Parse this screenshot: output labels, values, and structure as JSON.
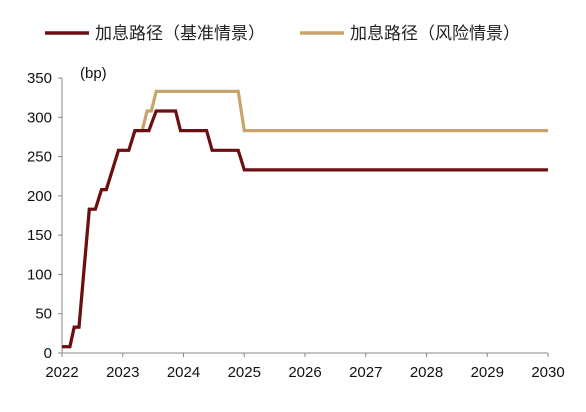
{
  "chart_data": {
    "type": "line",
    "ylabel": "(bp)",
    "ylim": [
      0,
      350
    ],
    "xlim": [
      2022,
      2030
    ],
    "y_ticks": [
      "0",
      "50",
      "100",
      "150",
      "200",
      "250",
      "300",
      "350"
    ],
    "x_ticks": [
      "2022",
      "2023",
      "2024",
      "2025",
      "2026",
      "2027",
      "2028",
      "2029",
      "2030"
    ],
    "grid": false,
    "legend_position": "top",
    "series": [
      {
        "name": "加息路径（基准情景）",
        "color": "#6b0f12",
        "points": [
          [
            2022.0,
            8
          ],
          [
            2022.13,
            8
          ],
          [
            2022.2,
            33
          ],
          [
            2022.28,
            33
          ],
          [
            2022.45,
            183
          ],
          [
            2022.55,
            183
          ],
          [
            2022.65,
            208
          ],
          [
            2022.73,
            208
          ],
          [
            2022.93,
            258
          ],
          [
            2023.1,
            258
          ],
          [
            2023.2,
            283
          ],
          [
            2023.43,
            283
          ],
          [
            2023.55,
            308
          ],
          [
            2023.87,
            308
          ],
          [
            2023.95,
            283
          ],
          [
            2024.38,
            283
          ],
          [
            2024.47,
            258
          ],
          [
            2024.9,
            258
          ],
          [
            2025.0,
            233
          ],
          [
            2030.0,
            233
          ]
        ]
      },
      {
        "name": "加息路径（风险情景）",
        "color": "#c9a46a",
        "points": [
          [
            2022.0,
            8
          ],
          [
            2022.13,
            8
          ],
          [
            2022.2,
            33
          ],
          [
            2022.28,
            33
          ],
          [
            2022.45,
            183
          ],
          [
            2022.55,
            183
          ],
          [
            2022.65,
            208
          ],
          [
            2022.73,
            208
          ],
          [
            2022.93,
            258
          ],
          [
            2023.1,
            258
          ],
          [
            2023.2,
            283
          ],
          [
            2023.32,
            283
          ],
          [
            2023.4,
            308
          ],
          [
            2023.47,
            308
          ],
          [
            2023.55,
            333
          ],
          [
            2024.9,
            333
          ],
          [
            2025.0,
            283
          ],
          [
            2030.0,
            283
          ]
        ]
      }
    ]
  }
}
